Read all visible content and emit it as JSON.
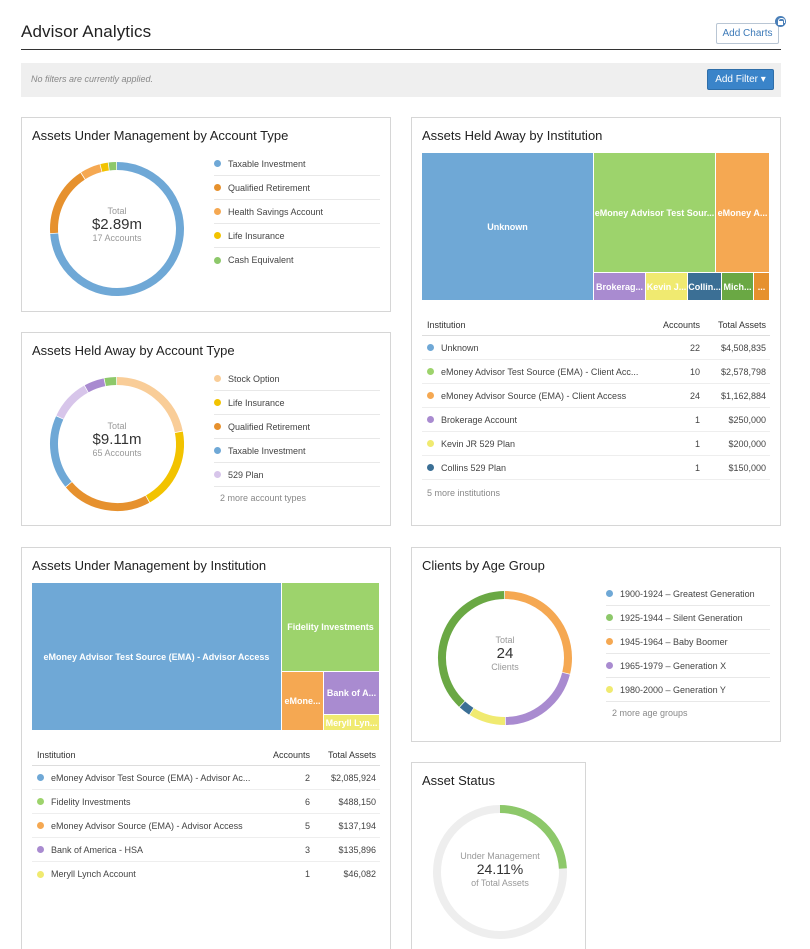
{
  "header": {
    "title": "Advisor Analytics",
    "add_charts_label": "Add Charts",
    "lock_icon": "lock-icon"
  },
  "filters": {
    "status_text": "No filters are currently applied.",
    "add_filter_label": "Add Filter ▾"
  },
  "aum_account_type": {
    "title": "Assets Under Management by Account Type",
    "center_label": "Total",
    "center_value": "$2.89m",
    "center_sub": "17 Accounts",
    "legend": [
      {
        "label": "Taxable Investment",
        "color": "#6fa8d6"
      },
      {
        "label": "Qualified Retirement",
        "color": "#e6912e"
      },
      {
        "label": "Health Savings Account",
        "color": "#f5a852"
      },
      {
        "label": "Life Insurance",
        "color": "#f2c300"
      },
      {
        "label": "Cash Equivalent",
        "color": "#8dc86a"
      }
    ],
    "slices": [
      {
        "color": "#6fa8d6",
        "fraction": 0.74
      },
      {
        "color": "#e6912e",
        "fraction": 0.17
      },
      {
        "color": "#f5a852",
        "fraction": 0.05
      },
      {
        "color": "#f2c300",
        "fraction": 0.02
      },
      {
        "color": "#8dc86a",
        "fraction": 0.02
      }
    ]
  },
  "held_away_account_type": {
    "title": "Assets Held Away by Account Type",
    "center_label": "Total",
    "center_value": "$9.11m",
    "center_sub": "65 Accounts",
    "legend": [
      {
        "label": "Stock Option",
        "color": "#f9cd98"
      },
      {
        "label": "Life Insurance",
        "color": "#f2c300"
      },
      {
        "label": "Qualified Retirement",
        "color": "#e6912e"
      },
      {
        "label": "Taxable Investment",
        "color": "#6fa8d6"
      },
      {
        "label": "529 Plan",
        "color": "#d7c5ea"
      }
    ],
    "more_text": "2 more account types",
    "slices": [
      {
        "color": "#f9cd98",
        "fraction": 0.22
      },
      {
        "color": "#f2c300",
        "fraction": 0.2
      },
      {
        "color": "#e6912e",
        "fraction": 0.22
      },
      {
        "color": "#6fa8d6",
        "fraction": 0.18
      },
      {
        "color": "#d7c5ea",
        "fraction": 0.1
      },
      {
        "color": "#a98bd0",
        "fraction": 0.05
      },
      {
        "color": "#8dc86a",
        "fraction": 0.03
      }
    ]
  },
  "held_away_institution": {
    "title": "Assets Held Away by Institution",
    "tiles": [
      {
        "label": "Unknown",
        "color": "#6fa8d6"
      },
      {
        "label": "eMoney Advisor Test Sour...",
        "color": "#9dd36c"
      },
      {
        "label": "eMoney A...",
        "color": "#f5a852"
      },
      {
        "label": "Brokerag...",
        "color": "#a98bd0"
      },
      {
        "label": "Kevin J...",
        "color": "#f0ea70"
      },
      {
        "label": "Collin...",
        "color": "#3b6f95"
      },
      {
        "label": "Mich...",
        "color": "#6aa844"
      },
      {
        "label": "...",
        "color": "#e6912e"
      }
    ],
    "columns": [
      "Institution",
      "Accounts",
      "Total Assets"
    ],
    "rows": [
      {
        "name": "Unknown",
        "accounts": "22",
        "total": "$4,508,835",
        "color": "#6fa8d6"
      },
      {
        "name": "eMoney Advisor Test Source (EMA) - Client Acc...",
        "accounts": "10",
        "total": "$2,578,798",
        "color": "#9dd36c"
      },
      {
        "name": "eMoney Advisor Source (EMA) - Client Access",
        "accounts": "24",
        "total": "$1,162,884",
        "color": "#f5a852"
      },
      {
        "name": "Brokerage Account",
        "accounts": "1",
        "total": "$250,000",
        "color": "#a98bd0"
      },
      {
        "name": "Kevin JR 529 Plan",
        "accounts": "1",
        "total": "$200,000",
        "color": "#f0ea70"
      },
      {
        "name": "Collins 529 Plan",
        "accounts": "1",
        "total": "$150,000",
        "color": "#3b6f95"
      }
    ],
    "more_text": "5 more institutions"
  },
  "aum_institution": {
    "title": "Assets Under Management by Institution",
    "tiles": [
      {
        "label": "eMoney Advisor Test Source (EMA) - Advisor Access",
        "color": "#6fa8d6"
      },
      {
        "label": "Fidelity Investments",
        "color": "#9dd36c"
      },
      {
        "label": "eMone...",
        "color": "#f5a852"
      },
      {
        "label": "Bank of A...",
        "color": "#a98bd0"
      },
      {
        "label": "Meryll Lyn...",
        "color": "#f0ea70"
      }
    ],
    "columns": [
      "Institution",
      "Accounts",
      "Total Assets"
    ],
    "rows": [
      {
        "name": "eMoney Advisor Test Source (EMA) - Advisor Ac...",
        "accounts": "2",
        "total": "$2,085,924",
        "color": "#6fa8d6"
      },
      {
        "name": "Fidelity Investments",
        "accounts": "6",
        "total": "$488,150",
        "color": "#9dd36c"
      },
      {
        "name": "eMoney Advisor Source (EMA) - Advisor Access",
        "accounts": "5",
        "total": "$137,194",
        "color": "#f5a852"
      },
      {
        "name": "Bank of America - HSA",
        "accounts": "3",
        "total": "$135,896",
        "color": "#a98bd0"
      },
      {
        "name": "Meryll Lynch Account",
        "accounts": "1",
        "total": "$46,082",
        "color": "#f0ea70"
      }
    ]
  },
  "clients_age": {
    "title": "Clients by Age Group",
    "center_label": "Total",
    "center_value": "24",
    "center_sub": "Clients",
    "legend": [
      {
        "label": "1900-1924 – Greatest Generation",
        "color": "#6fa8d6"
      },
      {
        "label": "1925-1944 – Silent Generation",
        "color": "#8dc86a"
      },
      {
        "label": "1945-1964 – Baby Boomer",
        "color": "#f5a852"
      },
      {
        "label": "1965-1979 – Generation X",
        "color": "#a98bd0"
      },
      {
        "label": "1980-2000 – Generation Y",
        "color": "#f0ea70"
      }
    ],
    "more_text": "2 more age groups",
    "slices": [
      {
        "color": "#f5a852",
        "fraction": 0.29
      },
      {
        "color": "#a98bd0",
        "fraction": 0.21
      },
      {
        "color": "#f0ea70",
        "fraction": 0.09
      },
      {
        "color": "#3b6f95",
        "fraction": 0.03
      },
      {
        "color": "#6aa844",
        "fraction": 0.38
      }
    ]
  },
  "asset_status": {
    "title": "Asset Status",
    "center_label": "Under Management",
    "center_value": "24.11%",
    "center_sub": "of Total Assets",
    "percent": 0.2411,
    "fill_color": "#8dc86a",
    "track_color": "#eeeeee"
  }
}
